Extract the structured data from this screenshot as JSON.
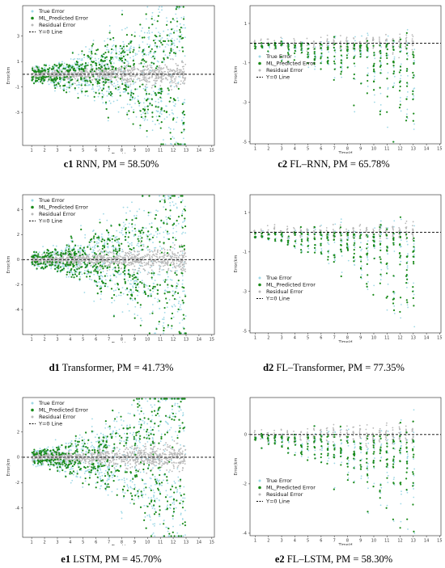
{
  "legend_labels": [
    "True Error",
    "ML_Predicted Error",
    "Residual Error",
    "Y=0 Line"
  ],
  "colors": {
    "true": "#9ed8e6",
    "pred": "#1a8a1a",
    "resid": "#b8b8b8",
    "zero": "#000000"
  },
  "chart_data": [
    {
      "id": "c1",
      "type": "scatter",
      "caption_id": "c1",
      "caption_rest": " RNN, PM = 58.50%",
      "xlabel": "Time/d",
      "ylabel": "Error/km",
      "xlim": [
        0.3,
        15.2
      ],
      "ylim": [
        -5.6,
        5.4
      ],
      "xticks": [
        1,
        2,
        3,
        4,
        5,
        6,
        7,
        8,
        9,
        10,
        11,
        12,
        13,
        14,
        15
      ],
      "yticks": [
        3,
        1,
        -1,
        -3
      ],
      "legend_position": "top-left",
      "data_x_range": [
        1,
        13
      ],
      "max_spread_km": 4.5,
      "spread_profile": "increasing"
    },
    {
      "id": "c2",
      "type": "scatter",
      "caption_id": "c2",
      "caption_rest": " FL–RNN, PM = 65.78%",
      "xlabel": "Time/d",
      "ylabel": "Error/km",
      "xlim": [
        0.6,
        15.1
      ],
      "ylim": [
        -5.1,
        1.9
      ],
      "xticks": [
        1,
        2,
        3,
        4,
        5,
        6,
        7,
        8,
        9,
        10,
        11,
        12,
        13,
        14,
        15
      ],
      "yticks": [
        1,
        -1,
        -3,
        -5
      ],
      "legend_position": "middle-left",
      "data_x_range": [
        1,
        13
      ],
      "max_spread_km": 3.0,
      "spread_profile": "discrete-days"
    },
    {
      "id": "d1",
      "type": "scatter",
      "caption_id": "d1",
      "caption_rest": " Transformer, PM = 41.73%",
      "xlabel": "Time/d",
      "ylabel": "Error/km",
      "xlim": [
        0.3,
        15.2
      ],
      "ylim": [
        -6.0,
        5.2
      ],
      "xticks": [
        1,
        2,
        3,
        4,
        5,
        6,
        7,
        8,
        9,
        10,
        11,
        12,
        13,
        14,
        15
      ],
      "yticks": [
        4,
        2,
        0,
        -2,
        -4
      ],
      "legend_position": "top-left",
      "data_x_range": [
        1,
        13
      ],
      "max_spread_km": 5.0,
      "spread_profile": "increasing"
    },
    {
      "id": "d2",
      "type": "scatter",
      "caption_id": "d2",
      "caption_rest": " FL–Transformer, PM = 77.35%",
      "xlabel": "Time/d",
      "ylabel": "Error/km",
      "xlim": [
        0.6,
        15.1
      ],
      "ylim": [
        -5.1,
        1.9
      ],
      "xticks": [
        1,
        2,
        3,
        4,
        5,
        6,
        7,
        8,
        9,
        10,
        11,
        12,
        13,
        14,
        15
      ],
      "yticks": [
        1,
        -1,
        -3,
        -5
      ],
      "legend_position": "bottom-left",
      "data_x_range": [
        1,
        13
      ],
      "max_spread_km": 3.0,
      "spread_profile": "discrete-days"
    },
    {
      "id": "e1",
      "type": "scatter",
      "caption_id": "e1",
      "caption_rest": " LSTM, PM = 45.70%",
      "xlabel": "Time/d",
      "ylabel": "Error/km",
      "xlim": [
        0.3,
        15.2
      ],
      "ylim": [
        -6.3,
        4.7
      ],
      "xticks": [
        1,
        2,
        3,
        4,
        5,
        6,
        7,
        8,
        9,
        10,
        11,
        12,
        13,
        14,
        15
      ],
      "yticks": [
        2,
        0,
        -2,
        -4
      ],
      "legend_position": "top-left",
      "data_x_range": [
        1,
        13
      ],
      "max_spread_km": 5.5,
      "spread_profile": "increasing"
    },
    {
      "id": "e2",
      "type": "scatter",
      "caption_id": "e2",
      "caption_rest": " FL–LSTM, PM = 58.30%",
      "xlabel": "Time/d",
      "ylabel": "Error/km",
      "xlim": [
        0.6,
        15.1
      ],
      "ylim": [
        -4.1,
        1.5
      ],
      "xticks": [
        1,
        2,
        3,
        4,
        5,
        6,
        7,
        8,
        9,
        10,
        11,
        12,
        13,
        14,
        15
      ],
      "yticks": [
        0,
        -2,
        -4
      ],
      "legend_position": "bottom-left",
      "data_x_range": [
        1,
        13
      ],
      "max_spread_km": 2.5,
      "spread_profile": "discrete-days"
    }
  ]
}
